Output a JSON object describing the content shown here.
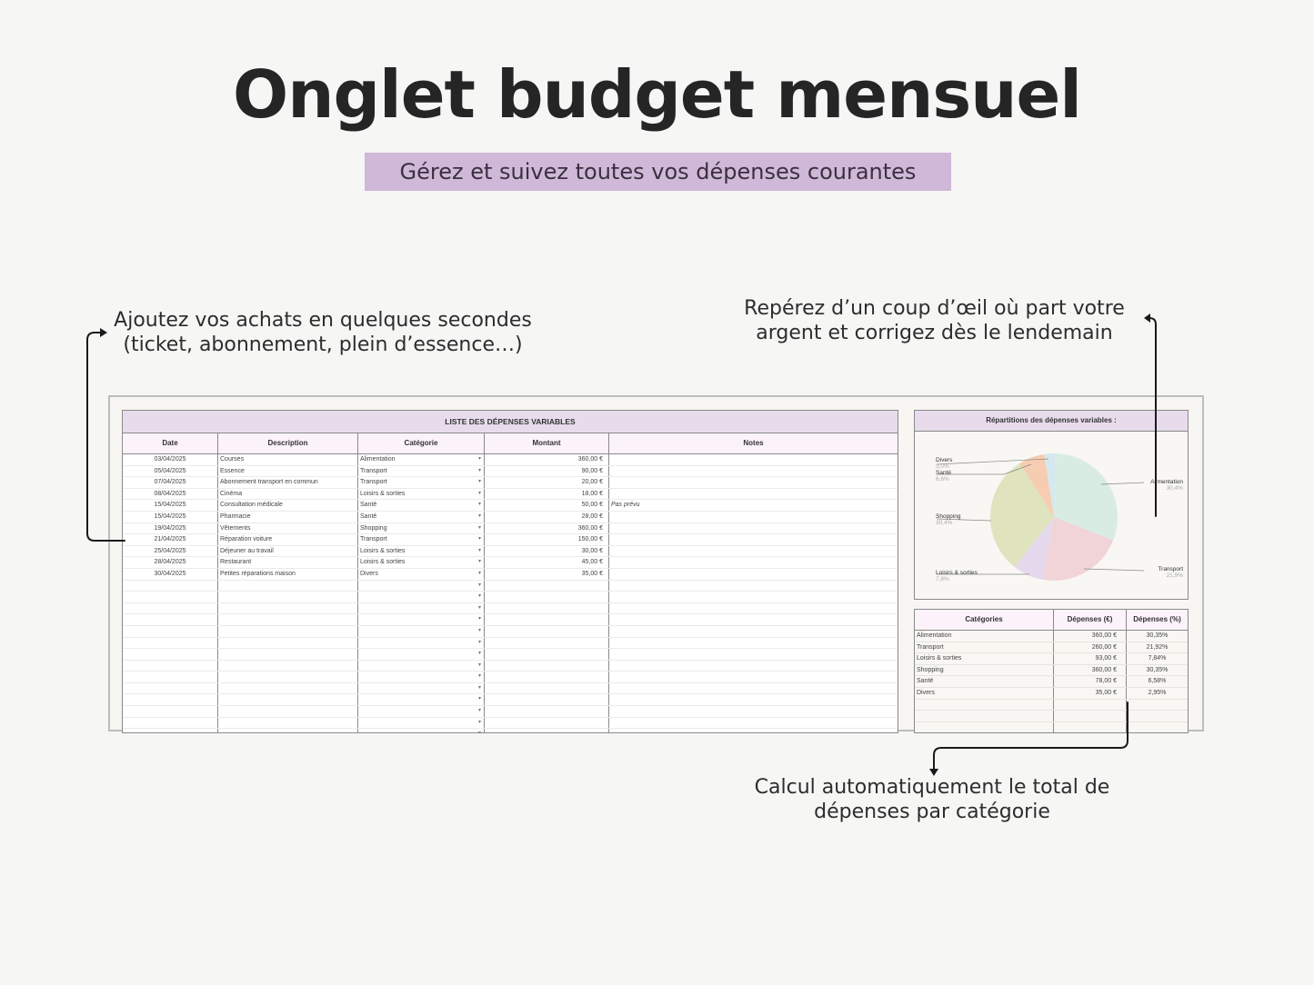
{
  "header": {
    "title": "Onglet budget mensuel",
    "subtitle": "Gérez et suivez toutes vos dépenses courantes"
  },
  "callouts": {
    "left": [
      "Ajoutez vos achats en quelques secondes",
      "(ticket, abonnement, plein d’essence…)"
    ],
    "right": [
      "Repérez d’un coup d’œil où part votre",
      "argent et corrigez dès le lendemain"
    ],
    "bottom": [
      "Calcul automatiquement le total de",
      "dépenses par catégorie"
    ]
  },
  "expenses": {
    "title": "LISTE DES DÉPENSES VARIABLES",
    "columns": [
      "Date",
      "Description",
      "Catégorie",
      "Montant",
      "Notes"
    ],
    "rows": [
      {
        "date": "03/04/2025",
        "desc": "Courses",
        "cat": "Alimentation",
        "amt": "360,00 €",
        "notes": ""
      },
      {
        "date": "05/04/2025",
        "desc": "Essence",
        "cat": "Transport",
        "amt": "90,00 €",
        "notes": ""
      },
      {
        "date": "07/04/2025",
        "desc": "Abonnement transport en commun",
        "cat": "Transport",
        "amt": "20,00 €",
        "notes": ""
      },
      {
        "date": "08/04/2025",
        "desc": "Cinéma",
        "cat": "Loisirs & sorties",
        "amt": "18,00 €",
        "notes": ""
      },
      {
        "date": "15/04/2025",
        "desc": "Consultation médicale",
        "cat": "Santé",
        "amt": "50,00 €",
        "notes": "Pas prévu"
      },
      {
        "date": "15/04/2025",
        "desc": "Pharmacie",
        "cat": "Santé",
        "amt": "28,00 €",
        "notes": ""
      },
      {
        "date": "19/04/2025",
        "desc": "Vêtements",
        "cat": "Shopping",
        "amt": "360,00 €",
        "notes": ""
      },
      {
        "date": "21/04/2025",
        "desc": "Réparation voiture",
        "cat": "Transport",
        "amt": "150,00 €",
        "notes": ""
      },
      {
        "date": "25/04/2025",
        "desc": "Déjeuner au travail",
        "cat": "Loisirs & sorties",
        "amt": "30,00 €",
        "notes": ""
      },
      {
        "date": "28/04/2025",
        "desc": "Restaurant",
        "cat": "Loisirs & sorties",
        "amt": "45,00 €",
        "notes": ""
      },
      {
        "date": "30/04/2025",
        "desc": "Petites réparations maison",
        "cat": "Divers",
        "amt": "35,00 €",
        "notes": ""
      }
    ],
    "empty_rows": 16,
    "dropdown_glyph": "▾"
  },
  "chart": {
    "title": "Répartitions des dépenses variables :",
    "slices": [
      {
        "label": "Alimentation",
        "pct": "30,4%",
        "color": "#d9ece4"
      },
      {
        "label": "Transport",
        "pct": "21,9%",
        "color": "#f1d4d8"
      },
      {
        "label": "Loisirs & sorties",
        "pct": "7,8%",
        "color": "#e6d8ec"
      },
      {
        "label": "Shopping",
        "pct": "30,4%",
        "color": "#dfe4bf"
      },
      {
        "label": "Santé",
        "pct": "6,6%",
        "color": "#f6cdb0"
      },
      {
        "label": "Divers",
        "pct": "3,0%",
        "color": "#d5e8ef"
      }
    ]
  },
  "summary": {
    "columns": [
      "Catégories",
      "Dépenses (€)",
      "Dépenses (%)"
    ],
    "rows": [
      {
        "cat": "Alimentation",
        "eur": "360,00 €",
        "pct": "30,35%"
      },
      {
        "cat": "Transport",
        "eur": "260,00 €",
        "pct": "21,92%"
      },
      {
        "cat": "Loisirs & sorties",
        "eur": "93,00 €",
        "pct": "7,84%"
      },
      {
        "cat": "Shopping",
        "eur": "360,00 €",
        "pct": "30,35%"
      },
      {
        "cat": "Santé",
        "eur": "78,00 €",
        "pct": "6,58%"
      },
      {
        "cat": "Divers",
        "eur": "35,00 €",
        "pct": "2,95%"
      }
    ],
    "empty_rows": 4
  },
  "chart_data": {
    "type": "pie",
    "title": "Répartitions des dépenses variables :",
    "categories": [
      "Alimentation",
      "Transport",
      "Loisirs & sorties",
      "Shopping",
      "Santé",
      "Divers"
    ],
    "values": [
      30.4,
      21.9,
      7.8,
      30.4,
      6.6,
      3.0
    ],
    "amounts_eur": [
      360,
      260,
      93,
      360,
      78,
      35
    ]
  }
}
